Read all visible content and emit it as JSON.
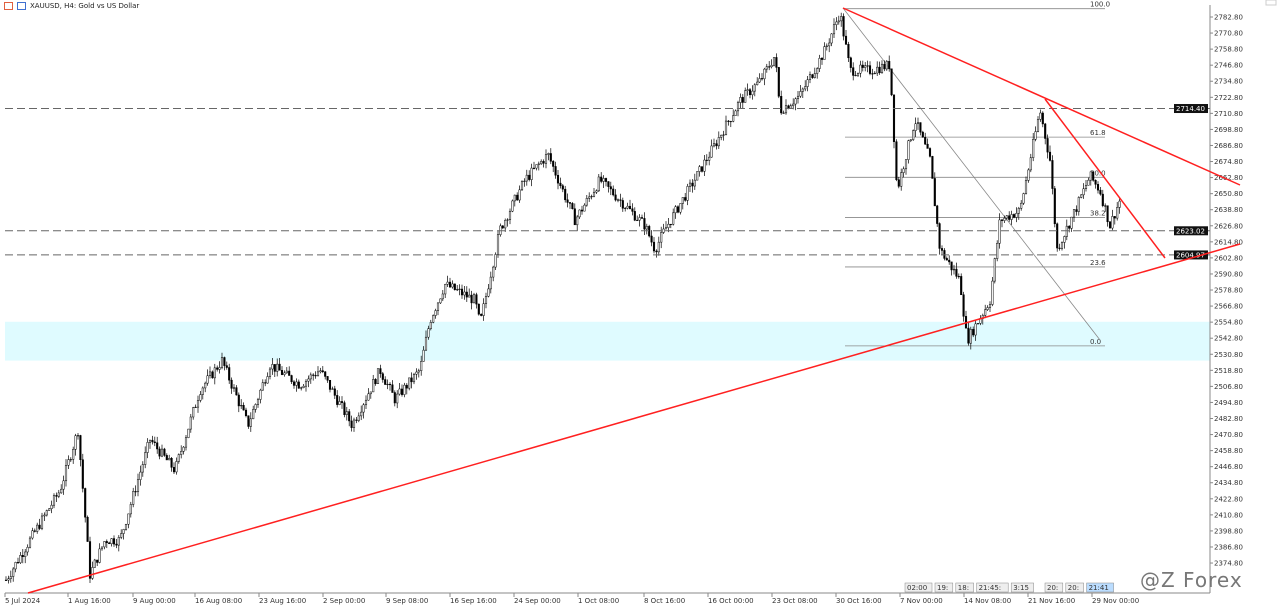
{
  "header": {
    "title": "XAUUSD, H4:  Gold vs US Dollar",
    "icons": [
      "chart-grid-icon",
      "trade-icon"
    ]
  },
  "price_axis": [
    "2782.80",
    "2770.80",
    "2758.80",
    "2746.80",
    "2734.80",
    "2722.80",
    "2710.80",
    "2698.80",
    "2686.80",
    "2674.80",
    "2662.80",
    "2650.80",
    "2638.80",
    "2626.80",
    "2614.80",
    "2602.80",
    "2590.80",
    "2578.80",
    "2566.80",
    "2554.80",
    "2542.80",
    "2530.80",
    "2518.80",
    "2506.80",
    "2494.80",
    "2482.80",
    "2470.80",
    "2458.80",
    "2446.80",
    "2434.80",
    "2422.80",
    "2410.80",
    "2398.80",
    "2386.80",
    "2374.80"
  ],
  "time_axis": [
    "5 Jul 2024",
    "1 Aug 16:00",
    "9 Aug 00:00",
    "16 Aug 08:00",
    "23 Aug 16:00",
    "2 Sep 00:00",
    "9 Sep 08:00",
    "16 Sep 16:00",
    "24 Sep 00:00",
    "1 Oct 08:00",
    "8 Oct 16:00",
    "16 Oct 00:00",
    "23 Oct 08:00",
    "30 Oct 16:00",
    "7 Nov 00:00",
    "14 Nov 08:00",
    "21 Nov 16:00",
    "29 Nov 00:00"
  ],
  "levels": [
    {
      "price": 2714.4,
      "label": "2714.40"
    },
    {
      "price": 2623.02,
      "label": "2623.02"
    },
    {
      "price": 2604.97,
      "label": "2604.97"
    }
  ],
  "fib": [
    {
      "label": "100.0",
      "price": 2789
    },
    {
      "label": "61.8",
      "price": 2693
    },
    {
      "label": "50.0",
      "price": 2663
    },
    {
      "label": "38.2",
      "price": 2633
    },
    {
      "label": "23.6",
      "price": 2596
    },
    {
      "label": "0.0",
      "price": 2537
    }
  ],
  "zone": {
    "from": 2526,
    "to": 2555,
    "color": "#dffbff"
  },
  "time_markers": [
    "02:00",
    "19:",
    "18:",
    "21:45:",
    "3:15",
    "20:",
    "20:",
    "21:41"
  ],
  "watermark": "@Z Forex",
  "colors": {
    "trend": "#ff2020",
    "bar": "#000000",
    "level": "#555555"
  }
}
